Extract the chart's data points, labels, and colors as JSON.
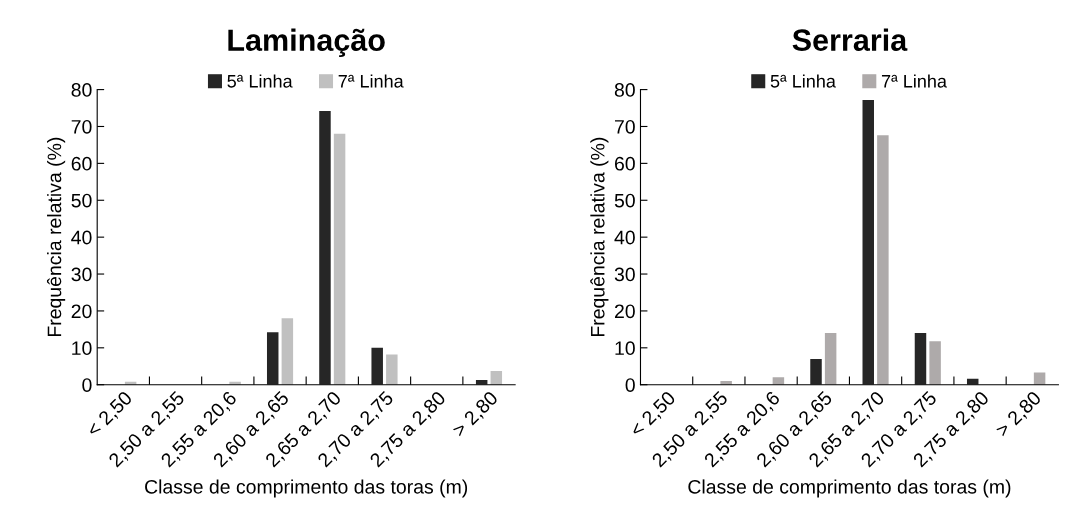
{
  "chart_data": [
    {
      "type": "bar",
      "title": "Laminação",
      "xlabel": "Classe de comprimento das toras (m)",
      "ylabel": "Frequência relativa (%)",
      "categories": [
        "< 2,50",
        "2,50 a 2,55",
        "2,55 a 20,6",
        "2,60 a 2,65",
        "2,65 a 2,70",
        "2,70 a 2,75",
        "2,75 a 2,80",
        "> 2,80"
      ],
      "series": [
        {
          "name": "5ª Linha",
          "color": "#262626",
          "values": [
            0,
            0,
            0,
            14.2,
            74.2,
            10,
            0,
            1.3
          ]
        },
        {
          "name": "7ª Linha",
          "color": "#c0c0c0",
          "values": [
            0.8,
            0,
            0.8,
            18,
            68,
            8.2,
            0,
            3.7
          ]
        }
      ],
      "ylim": [
        0,
        80
      ],
      "yticks": [
        0,
        10,
        20,
        30,
        40,
        50,
        60,
        70,
        80
      ],
      "grid": false,
      "legend": "top"
    },
    {
      "type": "bar",
      "title": "Serraria",
      "xlabel": "Classe de comprimento das toras (m)",
      "ylabel": "Frequência relativa (%)",
      "categories": [
        "< 2,50",
        "2,50 a 2,55",
        "2,55 a 20,6",
        "2,60 a 2,65",
        "2,65 a 2,70",
        "2,70 a 2,75",
        "2,75 a 2,80",
        "> 2,80"
      ],
      "series": [
        {
          "name": "5ª Linha",
          "color": "#262626",
          "values": [
            0,
            0,
            0,
            7,
            77.2,
            14,
            1.6,
            0
          ]
        },
        {
          "name": "7ª Linha",
          "color": "#aeaaaa",
          "values": [
            0,
            1,
            2,
            14,
            67.6,
            11.8,
            0,
            3.3
          ]
        }
      ],
      "ylim": [
        0,
        80
      ],
      "yticks": [
        0,
        10,
        20,
        30,
        40,
        50,
        60,
        70,
        80
      ],
      "grid": false,
      "legend": "top"
    }
  ]
}
